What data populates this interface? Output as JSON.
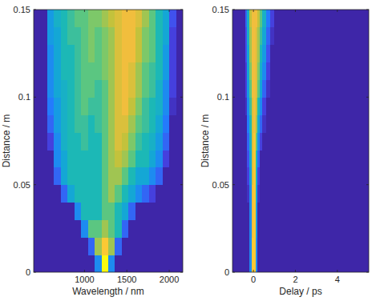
{
  "chart_data": [
    {
      "type": "heatmap",
      "x_label": "Wavelength / nm",
      "y_label": "Distance / m",
      "xlim": [
        400,
        2160
      ],
      "ylim": [
        0,
        0.15
      ],
      "xticks": [
        1000,
        1500,
        2000
      ],
      "yticks": [
        0,
        0.05,
        0.1,
        0.15
      ],
      "zlim": [
        0,
        1
      ],
      "x_bins": [
        400,
        480,
        560,
        640,
        720,
        800,
        880,
        960,
        1040,
        1120,
        1200,
        1280,
        1360,
        1440,
        1520,
        1600,
        1680,
        1760,
        1840,
        1920,
        2000,
        2080,
        2160
      ],
      "y_bins": [
        0,
        0.01,
        0.02,
        0.03,
        0.04,
        0.05,
        0.06,
        0.07,
        0.08,
        0.09,
        0.1,
        0.11,
        0.12,
        0.13,
        0.14,
        0.15
      ],
      "values": [
        [
          0,
          0,
          0,
          0,
          0,
          0,
          0,
          0,
          0,
          0.3,
          1,
          0.3,
          0,
          0,
          0,
          0,
          0,
          0,
          0,
          0,
          0,
          0
        ],
        [
          0,
          0,
          0,
          0,
          0,
          0,
          0,
          0,
          0.2,
          0.7,
          0.9,
          0.7,
          0.2,
          0,
          0,
          0,
          0,
          0,
          0,
          0,
          0,
          0
        ],
        [
          0,
          0,
          0,
          0,
          0,
          0,
          0,
          0.3,
          0.6,
          0.6,
          0.7,
          0.6,
          0.5,
          0.2,
          0,
          0,
          0,
          0,
          0,
          0,
          0,
          0
        ],
        [
          0,
          0,
          0,
          0,
          0,
          0,
          0.3,
          0.5,
          0.5,
          0.5,
          0.6,
          0.6,
          0.5,
          0.4,
          0.2,
          0,
          0,
          0,
          0,
          0,
          0,
          0
        ],
        [
          0,
          0,
          0,
          0,
          0.2,
          0.4,
          0.5,
          0.5,
          0.5,
          0.5,
          0.6,
          0.7,
          0.6,
          0.5,
          0.4,
          0.3,
          0.2,
          0.1,
          0,
          0,
          0,
          0
        ],
        [
          0,
          0,
          0,
          0.2,
          0.4,
          0.5,
          0.5,
          0.5,
          0.5,
          0.5,
          0.6,
          0.7,
          0.7,
          0.6,
          0.5,
          0.4,
          0.4,
          0.3,
          0.2,
          0,
          0,
          0
        ],
        [
          0,
          0,
          0,
          0.3,
          0.4,
          0.5,
          0.5,
          0.5,
          0.5,
          0.5,
          0.6,
          0.7,
          0.75,
          0.7,
          0.6,
          0.5,
          0.5,
          0.4,
          0.3,
          0.1,
          0,
          0
        ],
        [
          0,
          0,
          0.1,
          0.3,
          0.45,
          0.5,
          0.5,
          0.55,
          0.5,
          0.5,
          0.6,
          0.7,
          0.8,
          0.75,
          0.65,
          0.55,
          0.5,
          0.45,
          0.35,
          0.2,
          0,
          0
        ],
        [
          0,
          0,
          0.2,
          0.35,
          0.45,
          0.5,
          0.55,
          0.55,
          0.5,
          0.55,
          0.6,
          0.7,
          0.8,
          0.8,
          0.7,
          0.6,
          0.55,
          0.5,
          0.4,
          0.25,
          0,
          0
        ],
        [
          0,
          0,
          0.25,
          0.35,
          0.45,
          0.5,
          0.55,
          0.6,
          0.55,
          0.55,
          0.6,
          0.7,
          0.8,
          0.85,
          0.75,
          0.65,
          0.55,
          0.5,
          0.45,
          0.3,
          0.05,
          0
        ],
        [
          0,
          0,
          0.3,
          0.4,
          0.45,
          0.5,
          0.55,
          0.6,
          0.6,
          0.55,
          0.6,
          0.7,
          0.8,
          0.85,
          0.8,
          0.7,
          0.6,
          0.55,
          0.45,
          0.3,
          0.1,
          0
        ],
        [
          0,
          0,
          0.3,
          0.4,
          0.5,
          0.5,
          0.55,
          0.6,
          0.6,
          0.6,
          0.65,
          0.7,
          0.8,
          0.85,
          0.8,
          0.7,
          0.6,
          0.55,
          0.5,
          0.35,
          0.1,
          0
        ],
        [
          0,
          0,
          0.3,
          0.4,
          0.5,
          0.5,
          0.55,
          0.6,
          0.65,
          0.6,
          0.65,
          0.7,
          0.8,
          0.85,
          0.85,
          0.75,
          0.65,
          0.6,
          0.5,
          0.35,
          0.1,
          0
        ],
        [
          0,
          0,
          0.35,
          0.4,
          0.5,
          0.55,
          0.55,
          0.6,
          0.65,
          0.6,
          0.65,
          0.7,
          0.8,
          0.85,
          0.85,
          0.75,
          0.65,
          0.6,
          0.5,
          0.4,
          0.1,
          0
        ],
        [
          0,
          0,
          0.35,
          0.45,
          0.5,
          0.55,
          0.6,
          0.6,
          0.65,
          0.65,
          0.7,
          0.75,
          0.8,
          0.85,
          0.85,
          0.8,
          0.7,
          0.6,
          0.5,
          0.4,
          0.15,
          0
        ]
      ]
    },
    {
      "type": "heatmap",
      "x_label": "Delay / ps",
      "y_label": "Distance / m",
      "xlim": [
        -1,
        5.5
      ],
      "ylim": [
        0,
        0.15
      ],
      "xticks": [
        0,
        2,
        4
      ],
      "yticks": [
        0,
        0.05,
        0.1,
        0.15
      ],
      "zlim": [
        0,
        1
      ],
      "x_bins": [
        -1,
        -0.6,
        -0.4,
        -0.3,
        -0.2,
        -0.1,
        0,
        0.1,
        0.2,
        0.3,
        0.4,
        0.6,
        0.8,
        1,
        2,
        3,
        4,
        5.5
      ],
      "y_bins": [
        0,
        0.01,
        0.02,
        0.03,
        0.04,
        0.05,
        0.06,
        0.07,
        0.08,
        0.09,
        0.1,
        0.11,
        0.12,
        0.13,
        0.14,
        0.15
      ],
      "values": [
        [
          0,
          0,
          0,
          0,
          0.3,
          0.9,
          0.9,
          0.3,
          0,
          0,
          0,
          0,
          0,
          0,
          0,
          0,
          0
        ],
        [
          0,
          0,
          0,
          0,
          0.3,
          0.9,
          0.9,
          0.3,
          0,
          0,
          0,
          0,
          0,
          0,
          0,
          0,
          0
        ],
        [
          0,
          0,
          0,
          0,
          0.3,
          0.85,
          0.9,
          0.35,
          0,
          0,
          0,
          0,
          0,
          0,
          0,
          0,
          0
        ],
        [
          0,
          0,
          0,
          0,
          0.3,
          0.85,
          0.9,
          0.35,
          0,
          0,
          0,
          0,
          0,
          0,
          0,
          0,
          0
        ],
        [
          0,
          0,
          0,
          0.05,
          0.3,
          0.85,
          0.9,
          0.4,
          0.05,
          0,
          0,
          0,
          0,
          0,
          0,
          0,
          0
        ],
        [
          0,
          0,
          0,
          0.1,
          0.35,
          0.8,
          0.9,
          0.45,
          0.1,
          0,
          0,
          0,
          0,
          0,
          0,
          0,
          0
        ],
        [
          0,
          0,
          0,
          0.15,
          0.4,
          0.8,
          0.9,
          0.5,
          0.2,
          0,
          0,
          0,
          0,
          0,
          0,
          0,
          0
        ],
        [
          0,
          0,
          0,
          0.2,
          0.45,
          0.8,
          0.9,
          0.6,
          0.3,
          0.1,
          0,
          0,
          0,
          0,
          0,
          0,
          0
        ],
        [
          0,
          0,
          0,
          0.25,
          0.5,
          0.8,
          0.85,
          0.7,
          0.4,
          0.2,
          0.05,
          0,
          0,
          0,
          0,
          0,
          0
        ],
        [
          0,
          0,
          0.05,
          0.3,
          0.55,
          0.8,
          0.85,
          0.75,
          0.5,
          0.3,
          0.1,
          0,
          0,
          0,
          0,
          0,
          0
        ],
        [
          0,
          0,
          0.1,
          0.35,
          0.6,
          0.85,
          0.85,
          0.8,
          0.6,
          0.4,
          0.2,
          0.05,
          0,
          0,
          0,
          0,
          0
        ],
        [
          0,
          0,
          0.1,
          0.4,
          0.65,
          0.85,
          0.85,
          0.8,
          0.65,
          0.45,
          0.3,
          0.1,
          0,
          0,
          0,
          0,
          0
        ],
        [
          0,
          0,
          0.15,
          0.4,
          0.7,
          0.85,
          0.85,
          0.8,
          0.7,
          0.5,
          0.35,
          0.15,
          0,
          0,
          0,
          0,
          0
        ],
        [
          0,
          0,
          0.15,
          0.45,
          0.7,
          0.85,
          0.85,
          0.8,
          0.7,
          0.55,
          0.4,
          0.2,
          0.05,
          0,
          0,
          0,
          0
        ],
        [
          0,
          0,
          0.2,
          0.45,
          0.75,
          0.85,
          0.85,
          0.85,
          0.75,
          0.6,
          0.45,
          0.25,
          0.1,
          0,
          0,
          0,
          0
        ]
      ]
    }
  ]
}
